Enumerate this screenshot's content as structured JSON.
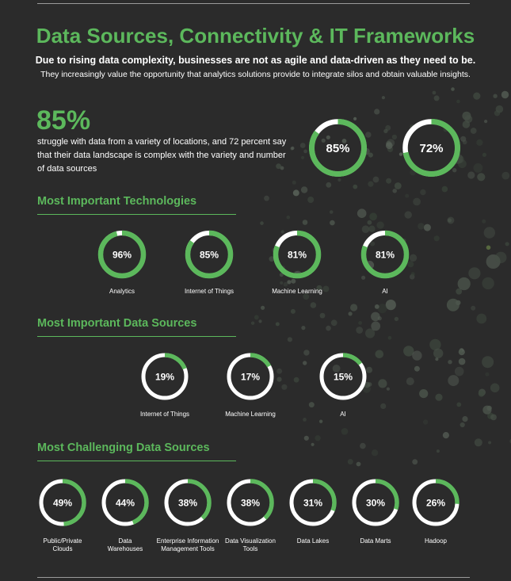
{
  "header": {
    "title": "Data Sources, Connectivity & IT Frameworks",
    "subtitle_bold": "Due to rising data complexity, businesses are not as agile and data-driven as they need to be.",
    "subtitle": "They increasingly value the opportunity that analytics solutions provide to integrate silos and obtain valuable insights."
  },
  "highlight": {
    "big_number": "85%",
    "text": "struggle with data from a variety of locations, and 72 percent say that their data landscape is complex with the variety and number of data sources",
    "rings": [
      {
        "label": "85%",
        "value": 85
      },
      {
        "label": "72%",
        "value": 72
      }
    ]
  },
  "technologies": {
    "heading": "Most Important Technologies",
    "items": [
      {
        "label": "96%",
        "value": 96,
        "caption": "Analytics"
      },
      {
        "label": "85%",
        "value": 85,
        "caption": "Internet of Things"
      },
      {
        "label": "81%",
        "value": 81,
        "caption": "Machine Learning"
      },
      {
        "label": "81%",
        "value": 81,
        "caption": "AI"
      }
    ]
  },
  "data_sources": {
    "heading": "Most Important Data Sources",
    "items": [
      {
        "label": "19%",
        "value": 19,
        "caption": "Internet of Things"
      },
      {
        "label": "17%",
        "value": 17,
        "caption": "Machine Learning"
      },
      {
        "label": "15%",
        "value": 15,
        "caption": "AI"
      }
    ]
  },
  "challenging": {
    "heading": "Most Challenging Data Sources",
    "items": [
      {
        "label": "49%",
        "value": 49,
        "caption_lines": [
          "Public/Private",
          "Clouds"
        ]
      },
      {
        "label": "44%",
        "value": 44,
        "caption_lines": [
          "Data",
          "Warehouses"
        ]
      },
      {
        "label": "38%",
        "value": 38,
        "caption_lines": [
          "Enterprise Information",
          "Management Tools"
        ]
      },
      {
        "label": "38%",
        "value": 38,
        "caption_lines": [
          "Data Visualization",
          "Tools"
        ]
      },
      {
        "label": "31%",
        "value": 31,
        "caption_lines": [
          "Data Lakes"
        ]
      },
      {
        "label": "30%",
        "value": 30,
        "caption_lines": [
          "Data Marts"
        ]
      },
      {
        "label": "26%",
        "value": 26,
        "caption_lines": [
          "Hadoop"
        ]
      }
    ]
  },
  "colors": {
    "accent": "#5cb85c",
    "background": "#2b2b2b",
    "ring_track": "#ffffff"
  }
}
